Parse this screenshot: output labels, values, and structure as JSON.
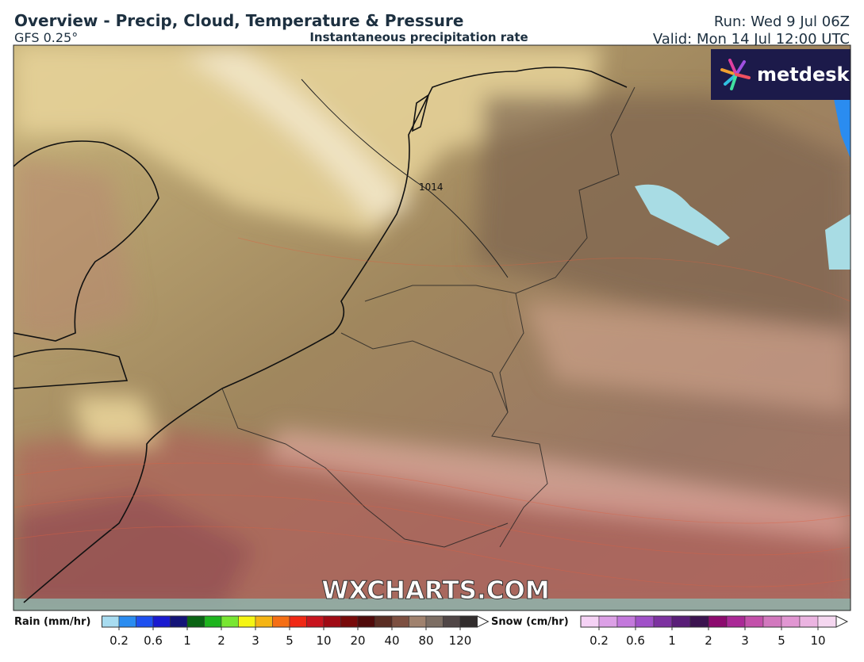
{
  "header": {
    "title": "Overview - Precip, Cloud, Temperature & Pressure",
    "model": "GFS 0.25°",
    "field": "Instantaneous precipitation rate",
    "run": "Run: Wed 9 Jul 06Z",
    "valid": "Valid: Mon 14 Jul 12:00 UTC"
  },
  "map": {
    "isobar_label": "1014",
    "watermark": "WXCHARTS.COM",
    "logo": "metdesk"
  },
  "legend": {
    "rain": {
      "label": "Rain (mm/hr)",
      "ticks": [
        0.2,
        0.6,
        1,
        2,
        3,
        5,
        10,
        20,
        40,
        80,
        120
      ],
      "colors": [
        "#a8dcf0",
        "#2a8cf0",
        "#1e50f0",
        "#1a1ad0",
        "#141478",
        "#0a6414",
        "#1eb41e",
        "#78e632",
        "#f5f514",
        "#f5b414",
        "#f56e14",
        "#f02814",
        "#c8141e",
        "#a00a14",
        "#780a0a",
        "#500a0a",
        "#5a2d23",
        "#7d5041",
        "#a0826e",
        "#7d6e64",
        "#504646",
        "#322d2d"
      ]
    },
    "snow": {
      "label": "Snow (cm/hr)",
      "ticks": [
        0.2,
        0.6,
        1,
        2,
        3,
        5,
        10
      ],
      "colors": [
        "#f5d2f5",
        "#dca0e6",
        "#c378dc",
        "#a050c8",
        "#7d32a0",
        "#5a1e78",
        "#3c1450",
        "#8c0a6e",
        "#aa2896",
        "#c350aa",
        "#d278be",
        "#e196d2",
        "#ebb4e1",
        "#f5d7f0"
      ]
    }
  }
}
